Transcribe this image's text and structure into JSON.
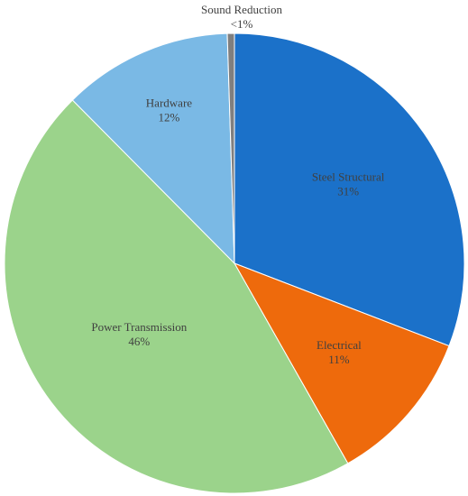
{
  "chart_data": {
    "type": "pie",
    "categories": [
      "Steel Structural",
      "Electrical",
      "Power Transmission",
      "Hardware",
      "Sound Reduction"
    ],
    "values": [
      31,
      11,
      46,
      12,
      0.5
    ],
    "value_labels": [
      "31%",
      "11%",
      "46%",
      "12%",
      "<1%"
    ],
    "colors": [
      "#1b71c9",
      "#ee6a0c",
      "#9bd38b",
      "#7ab9e5",
      "#7f7f7f"
    ]
  }
}
